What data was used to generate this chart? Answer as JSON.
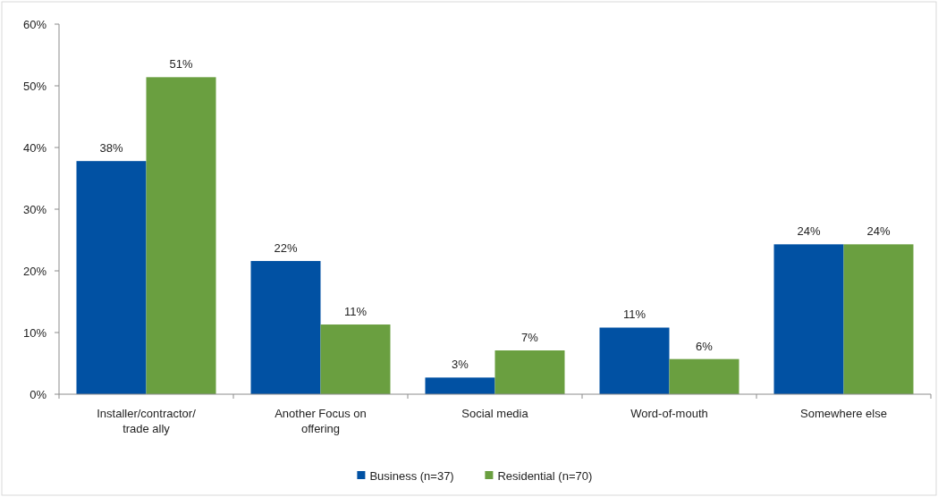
{
  "chart_data": {
    "type": "bar",
    "categories": [
      "Installer/contractor/ trade ally",
      "Another Focus on offering",
      "Social media",
      "Word-of-mouth",
      "Somewhere else"
    ],
    "series": [
      {
        "name": "Business (n=37)",
        "color": "#0151a3",
        "values": [
          37.8,
          21.6,
          2.7,
          10.8,
          24.3
        ],
        "value_labels": [
          "38%",
          "22%",
          "3%",
          "11%",
          "24%"
        ]
      },
      {
        "name": "Residential (n=70)",
        "color": "#6a9f40",
        "values": [
          51.4,
          11.3,
          7.1,
          5.7,
          24.3
        ],
        "value_labels": [
          "51%",
          "11%",
          "7%",
          "6%",
          "24%"
        ]
      }
    ],
    "ylim": [
      0,
      60
    ],
    "yticks": [
      {
        "value": 0,
        "label": "0%"
      },
      {
        "value": 10,
        "label": "10%"
      },
      {
        "value": 20,
        "label": "20%"
      },
      {
        "value": 30,
        "label": "30%"
      },
      {
        "value": 40,
        "label": "40%"
      },
      {
        "value": 50,
        "label": "50%"
      },
      {
        "value": 60,
        "label": "60%"
      }
    ],
    "legend": "bottom"
  }
}
